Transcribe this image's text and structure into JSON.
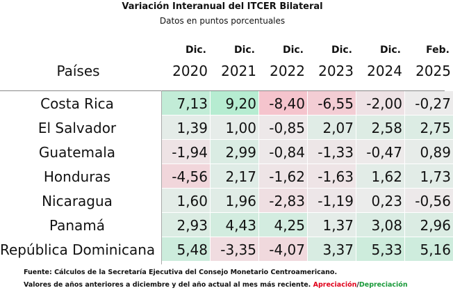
{
  "header": {
    "title": "Variación Interanual del ITCER Bilateral",
    "subtitle": "Datos en puntos porcentuales"
  },
  "table": {
    "corner": "Países",
    "columns": [
      {
        "month": "Dic.",
        "year": "2020"
      },
      {
        "month": "Dic.",
        "year": "2021"
      },
      {
        "month": "Dic.",
        "year": "2022"
      },
      {
        "month": "Dic.",
        "year": "2023"
      },
      {
        "month": "Dic.",
        "year": "2024"
      },
      {
        "month": "Feb.",
        "year": "2025"
      }
    ],
    "rows": [
      {
        "country": "Costa Rica",
        "values": [
          "7,13",
          "9,20",
          "-8,40",
          "-6,55",
          "-2,00",
          "-0,27"
        ]
      },
      {
        "country": "El Salvador",
        "values": [
          "1,39",
          "1,00",
          "-0,85",
          "2,07",
          "2,58",
          "2,75"
        ]
      },
      {
        "country": "Guatemala",
        "values": [
          "-1,94",
          "2,99",
          "-0,84",
          "-1,33",
          "-0,47",
          "0,89"
        ]
      },
      {
        "country": "Honduras",
        "values": [
          "-4,56",
          "2,17",
          "-1,62",
          "-1,63",
          "1,62",
          "1,73"
        ]
      },
      {
        "country": "Nicaragua",
        "values": [
          "1,60",
          "1,96",
          "-2,83",
          "-1,19",
          "0,23",
          "-0,56"
        ]
      },
      {
        "country": "Panamá",
        "values": [
          "2,93",
          "4,43",
          "4,25",
          "1,37",
          "3,08",
          "2,96"
        ]
      },
      {
        "country": "República Dominicana",
        "values": [
          "5,48",
          "-3,35",
          "-4,07",
          "3,37",
          "5,33",
          "5,16"
        ]
      }
    ]
  },
  "footer": {
    "source": "Fuente: Cálculos de la Secretaría Ejecutiva del Consejo Monetario Centroamericano.",
    "note": "Valores de años anteriores a diciembre y del año actual al mes más reciente.",
    "appreciation": "Apreciación",
    "separator": "/",
    "depreciation": "Depreciación",
    "appreciation_color": "#e0001b",
    "depreciation_color": "#1a9a3a"
  },
  "colors": {
    "positive": "#b6ecd1",
    "negative": "#f5c4cd",
    "neutral": "#ececec"
  }
}
